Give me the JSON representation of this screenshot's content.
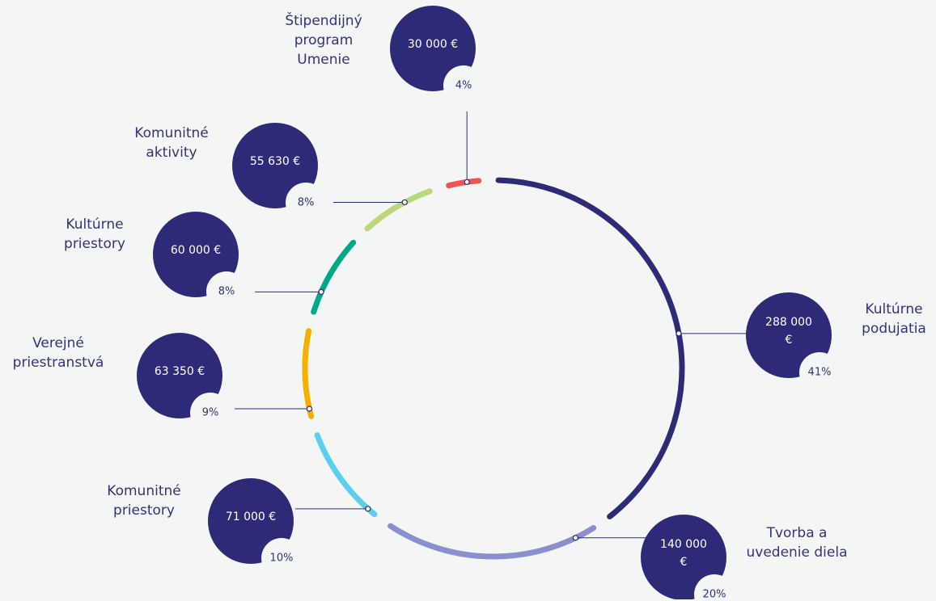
{
  "chart_data": {
    "type": "donut",
    "categories": [
      "Kultúrne podujatia",
      "Tvorba a uvedenie diela",
      "Komunitné priestory",
      "Verejné priestranstvá",
      "Kultúrne priestory",
      "Komunitné aktivity",
      "Štipendijný program Umenie"
    ],
    "values": [
      288000,
      140000,
      71000,
      63350,
      60000,
      55630,
      30000
    ],
    "value_labels": [
      "288 000 €",
      "140 000 €",
      "71 000 €",
      "63 350 €",
      "60 000 €",
      "55 630 €",
      "30 000 €"
    ],
    "shares": [
      41,
      20,
      10,
      9,
      8,
      8,
      4
    ],
    "share_labels": [
      "41%",
      "20%",
      "10%",
      "9%",
      "8%",
      "8%",
      "4%"
    ],
    "colors": [
      "#2d2b78",
      "#8a8fcf",
      "#5ccfee",
      "#f4b000",
      "#00a88a",
      "#b8d87a",
      "#f05454"
    ],
    "bubble_color": "#2d2b78"
  }
}
